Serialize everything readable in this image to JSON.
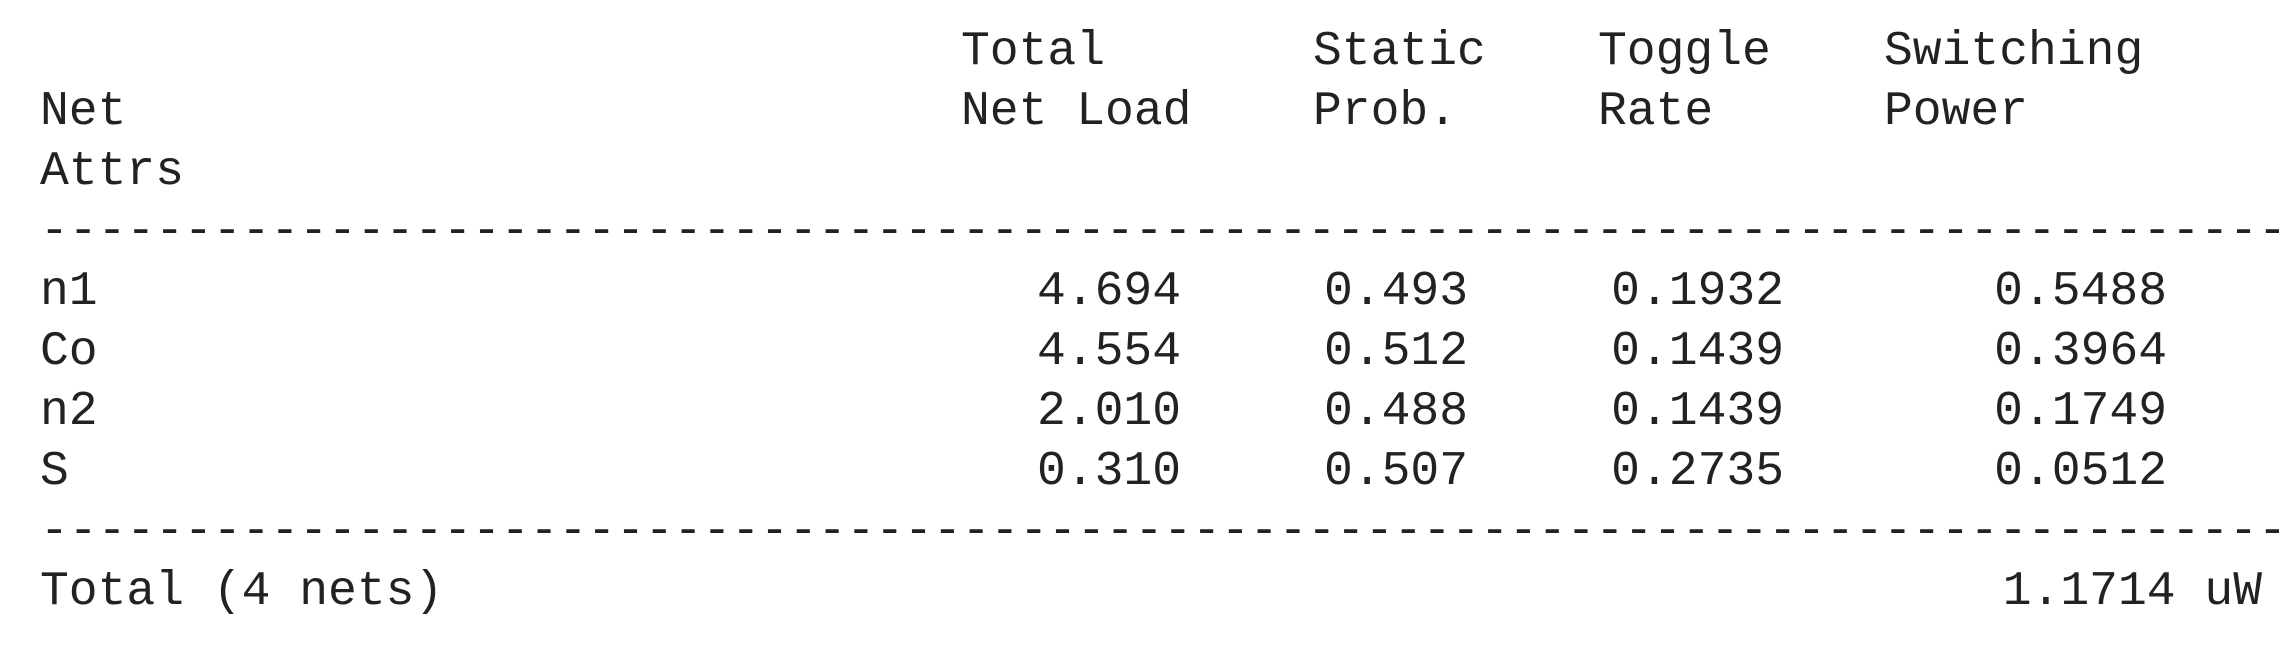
{
  "header": {
    "net": "Net",
    "attrs": "Attrs",
    "load_line1": "Total",
    "load_line2": "Net Load",
    "prob_line1": "Static",
    "prob_line2": "Prob.",
    "toggle_line1": "Toggle",
    "toggle_line2": "Rate",
    "power_line1": "Switching",
    "power_line2": "Power"
  },
  "separator": "--------------------------------------------------------------------------------------------------------------------------------",
  "rows": [
    {
      "net": "n1",
      "load": "4.694",
      "prob": "0.493",
      "toggle": "0.1932",
      "power": "0.5488"
    },
    {
      "net": "Co",
      "load": "4.554",
      "prob": "0.512",
      "toggle": "0.1439",
      "power": "0.3964"
    },
    {
      "net": "n2",
      "load": "2.010",
      "prob": "0.488",
      "toggle": "0.1439",
      "power": "0.1749"
    },
    {
      "net": "S",
      "load": "0.310",
      "prob": "0.507",
      "toggle": "0.2735",
      "power": "0.0512"
    }
  ],
  "total": {
    "label": "Total (4 nets)",
    "power": "1.1714 uW"
  }
}
